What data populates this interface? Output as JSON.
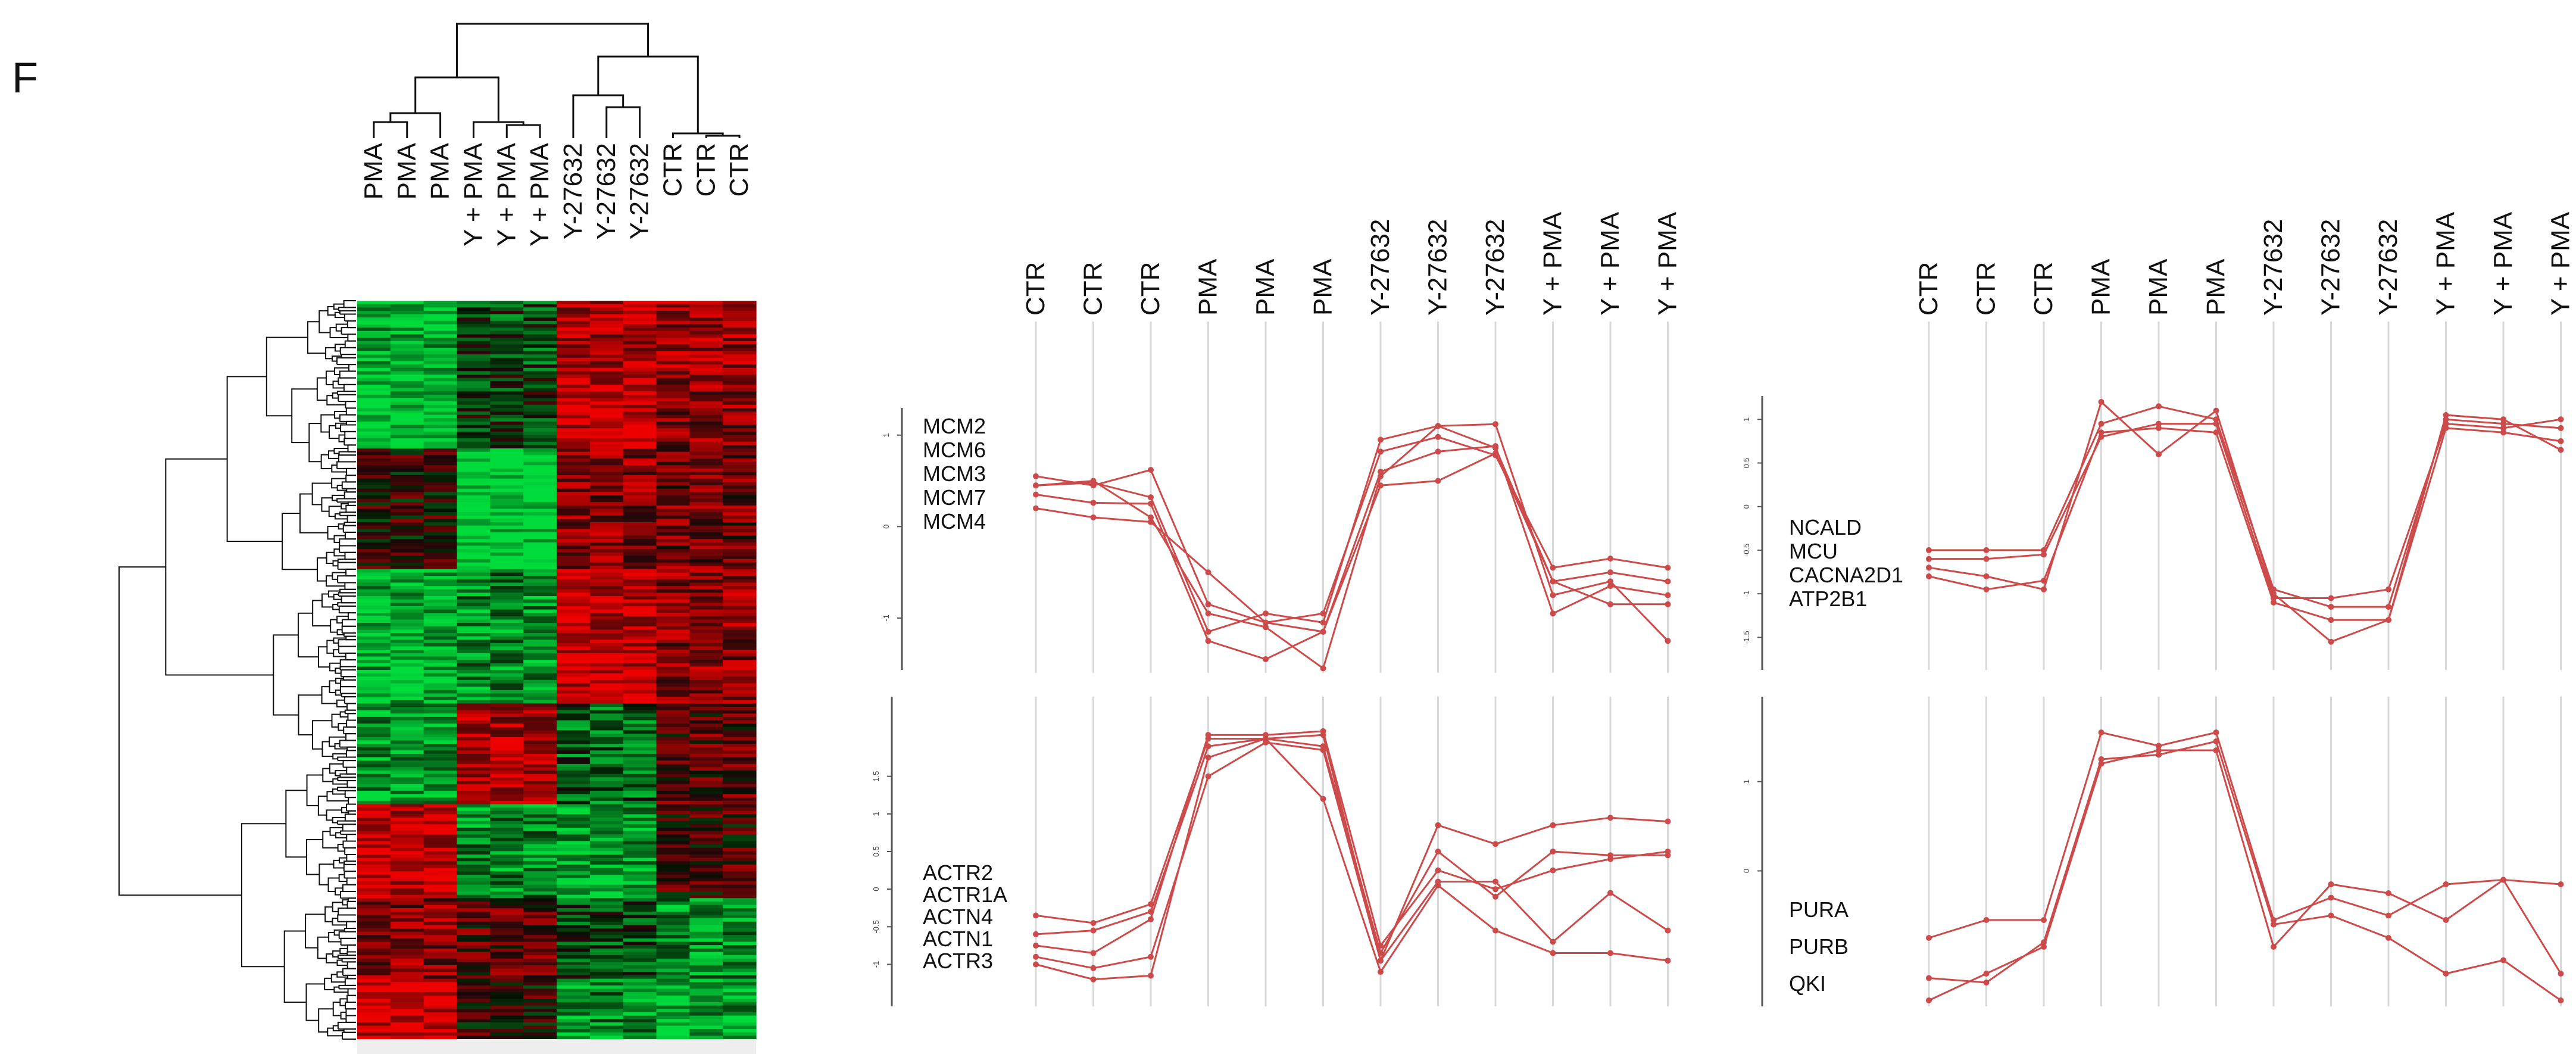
{
  "panel_letter": "F",
  "colors": {
    "line": "#cc4a4a",
    "grid": "#d9d9d9",
    "axis": "#555555",
    "heat_high": "#ff1a1a",
    "heat_low": "#1aff4a",
    "heat_mid": "#000000",
    "heat_footer": "#eeeeee"
  },
  "chart_data": [
    {
      "type": "heatmap",
      "columns": [
        "PMA",
        "PMA",
        "PMA",
        "Y + PMA",
        "Y + PMA",
        "Y + PMA",
        "Y-27632",
        "Y-27632",
        "Y-27632",
        "CTR",
        "CTR",
        "CTR"
      ],
      "column_groups": [
        "PMA",
        "PMA",
        "PMA",
        "Y + PMA",
        "Y + PMA",
        "Y + PMA",
        "Y-27632",
        "Y-27632",
        "Y-27632",
        "CTR",
        "CTR",
        "CTR"
      ],
      "row_count": 220,
      "value_range": [
        -1,
        1
      ],
      "row_dendrogram": true,
      "column_dendrogram": true,
      "legend": "none"
    },
    {
      "type": "line",
      "categories": [
        "CTR",
        "CTR",
        "CTR",
        "PMA",
        "PMA",
        "PMA",
        "Y-27632",
        "Y-27632",
        "Y-27632",
        "Y + PMA",
        "Y + PMA",
        "Y + PMA"
      ],
      "genes": [
        "MCM2",
        "MCM6",
        "MCM3",
        "MCM7",
        "MCM4"
      ],
      "yticks": [
        "-1",
        "0",
        "1"
      ],
      "ytick_values": [
        -1,
        0,
        1
      ],
      "ylim": [
        -1.6,
        1.2
      ],
      "grid": true,
      "series": [
        {
          "values": [
            0.55,
            0.45,
            0.62,
            -0.85,
            -1.05,
            -0.95,
            0.82,
            0.98,
            0.78,
            -0.45,
            -0.35,
            -0.45
          ]
        },
        {
          "values": [
            0.45,
            0.48,
            0.32,
            -1.15,
            -0.95,
            -1.05,
            0.95,
            1.1,
            0.86,
            -0.6,
            -0.5,
            -0.6
          ]
        },
        {
          "values": [
            0.35,
            0.26,
            0.25,
            -1.25,
            -1.45,
            -1.15,
            0.6,
            0.82,
            0.88,
            -0.95,
            -0.65,
            -0.75
          ]
        },
        {
          "values": [
            0.45,
            0.5,
            0.1,
            -0.95,
            -1.1,
            -1.55,
            0.55,
            1.1,
            1.12,
            -0.75,
            -0.6,
            -1.25
          ]
        },
        {
          "values": [
            0.2,
            0.1,
            0.05,
            -0.5,
            -1.05,
            -1.15,
            0.45,
            0.5,
            0.8,
            -0.6,
            -0.85,
            -0.85
          ]
        }
      ]
    },
    {
      "type": "line",
      "categories": [
        "CTR",
        "CTR",
        "CTR",
        "PMA",
        "PMA",
        "PMA",
        "Y-27632",
        "Y-27632",
        "Y-27632",
        "Y + PMA",
        "Y + PMA",
        "Y + PMA"
      ],
      "genes": [
        "NCALD",
        "MCU",
        "CACNA2D1",
        "ATP2B1"
      ],
      "yticks": [
        "1",
        "0.5",
        "0",
        "-0.5",
        "-1",
        "-1.5"
      ],
      "ytick_values": [
        1,
        0.5,
        0,
        -0.5,
        -1,
        -1.5
      ],
      "ylim": [
        -1.6,
        1.2
      ],
      "grid": true,
      "series": [
        {
          "values": [
            -0.5,
            -0.5,
            -0.5,
            0.95,
            1.15,
            1.0,
            -0.95,
            -1.15,
            -1.15,
            1.0,
            0.95,
            0.9
          ]
        },
        {
          "values": [
            -0.6,
            -0.6,
            -0.55,
            0.8,
            0.95,
            0.95,
            -1.05,
            -1.05,
            -0.95,
            0.95,
            0.9,
            1.0
          ]
        },
        {
          "values": [
            -0.7,
            -0.8,
            -0.95,
            1.2,
            0.6,
            1.1,
            -1.0,
            -1.55,
            -1.3,
            1.05,
            1.0,
            0.65
          ]
        },
        {
          "values": [
            -0.8,
            -0.95,
            -0.85,
            0.85,
            0.9,
            0.85,
            -1.1,
            -1.3,
            -1.3,
            0.9,
            0.85,
            0.75
          ]
        }
      ]
    },
    {
      "type": "line",
      "categories": [
        "CTR",
        "CTR",
        "CTR",
        "PMA",
        "PMA",
        "PMA",
        "Y-27632",
        "Y-27632",
        "Y-27632",
        "Y + PMA",
        "Y + PMA",
        "Y + PMA"
      ],
      "genes": [
        "ACTR2",
        "ACTR1A",
        "ACTN4",
        "ACTN1",
        "ACTR3"
      ],
      "yticks": [
        "1.5",
        "1",
        "0.5",
        "0",
        "-0.5",
        "-1"
      ],
      "ytick_values": [
        1.5,
        1,
        0.5,
        0,
        -0.5,
        -1
      ],
      "ylim": [
        -1.4,
        2.4
      ],
      "grid": true,
      "series": [
        {
          "values": [
            -0.35,
            -0.45,
            -0.2,
            2.0,
            2.0,
            2.05,
            -0.95,
            0.85,
            0.6,
            0.85,
            0.95,
            0.9
          ]
        },
        {
          "values": [
            -0.6,
            -0.55,
            -0.3,
            1.9,
            2.0,
            1.9,
            -0.85,
            0.5,
            -0.1,
            0.5,
            0.45,
            0.45
          ]
        },
        {
          "values": [
            -0.75,
            -0.85,
            -0.4,
            2.05,
            2.05,
            2.1,
            -0.75,
            0.25,
            0.0,
            0.25,
            0.4,
            0.5
          ]
        },
        {
          "values": [
            -0.9,
            -1.05,
            -0.9,
            1.5,
            1.95,
            1.85,
            -0.95,
            0.1,
            0.1,
            -0.7,
            -0.05,
            -0.55
          ]
        },
        {
          "values": [
            -1.0,
            -1.2,
            -1.15,
            1.75,
            2.0,
            1.2,
            -1.1,
            0.05,
            -0.55,
            -0.85,
            -0.85,
            -0.95
          ]
        }
      ]
    },
    {
      "type": "line",
      "categories": [
        "CTR",
        "CTR",
        "CTR",
        "PMA",
        "PMA",
        "PMA",
        "Y-27632",
        "Y-27632",
        "Y-27632",
        "Y + PMA",
        "Y + PMA",
        "Y + PMA"
      ],
      "genes": [
        "PURA",
        "PURB",
        "QKI"
      ],
      "yticks": [
        "1",
        "0"
      ],
      "ytick_values": [
        1,
        0
      ],
      "ylim": [
        -1.55,
        1.75
      ],
      "grid": true,
      "series": [
        {
          "values": [
            -0.75,
            -0.55,
            -0.55,
            1.55,
            1.4,
            1.55,
            -0.55,
            -0.3,
            -0.5,
            -0.15,
            -0.1,
            -0.15
          ]
        },
        {
          "values": [
            -1.2,
            -1.25,
            -0.8,
            1.25,
            1.3,
            1.45,
            -0.6,
            -0.5,
            -0.75,
            -1.15,
            -1.0,
            -1.45
          ]
        },
        {
          "values": [
            -1.45,
            -1.15,
            -0.85,
            1.2,
            1.35,
            1.35,
            -0.85,
            -0.15,
            -0.25,
            -0.55,
            -0.1,
            -1.15
          ]
        }
      ]
    }
  ]
}
